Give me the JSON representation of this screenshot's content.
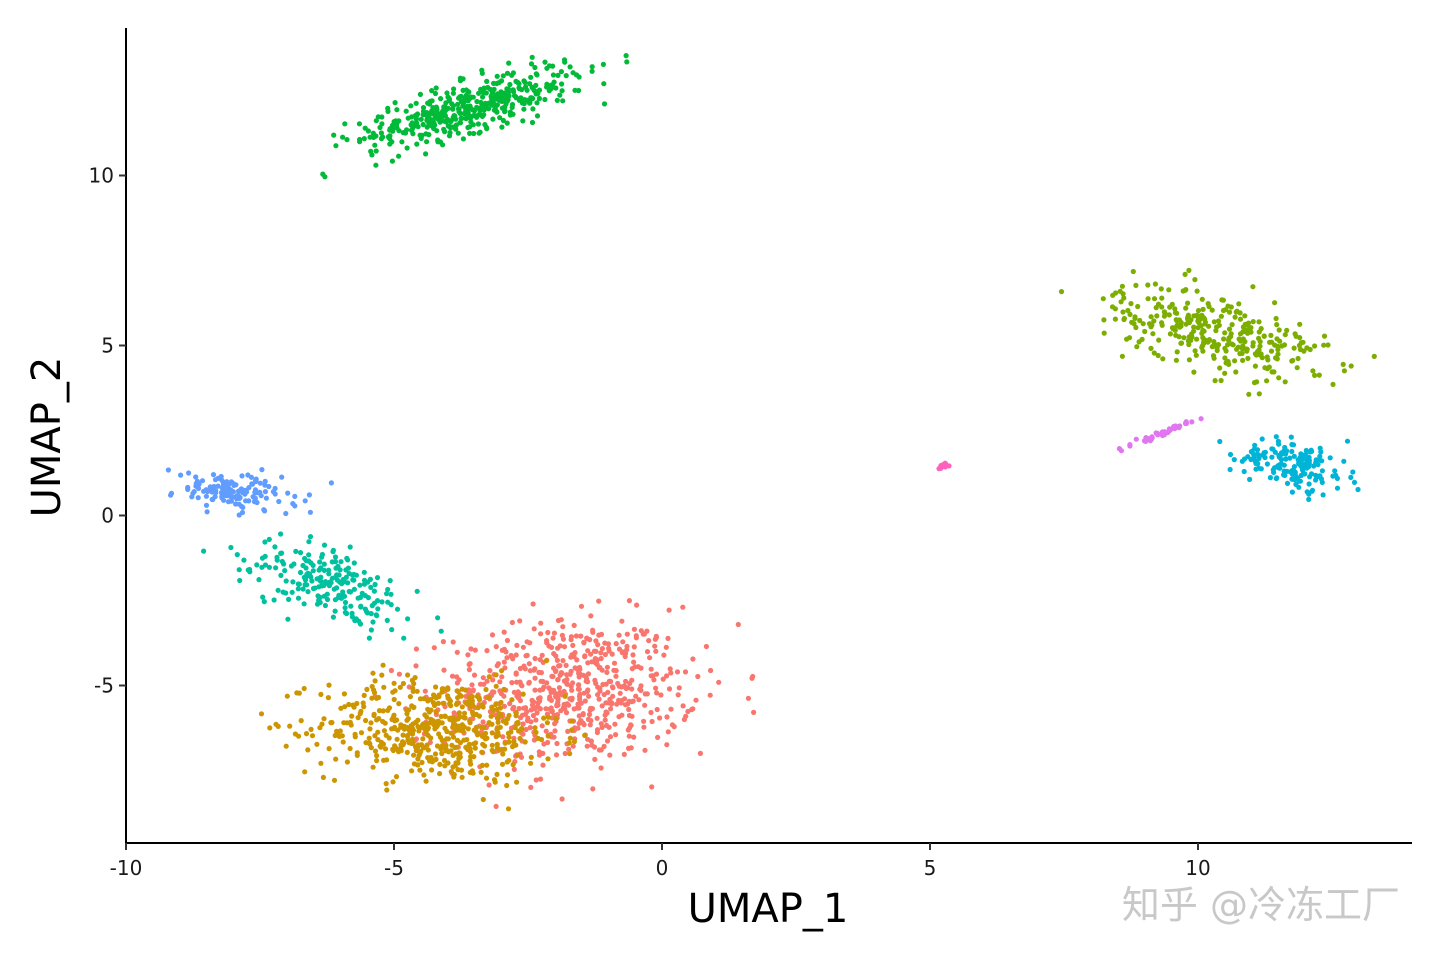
{
  "chart_data": {
    "type": "scatter",
    "title": "",
    "xlabel": "UMAP_1",
    "ylabel": "UMAP_2",
    "xlim": [
      -10.1,
      13.9
    ],
    "ylim": [
      -9.7,
      14.5
    ],
    "xticks": [
      -10,
      -5,
      0,
      5,
      10
    ],
    "xtick_labels": [
      "-10",
      "-5",
      "0",
      "5",
      "10"
    ],
    "yticks": [
      -5,
      0,
      5,
      10
    ],
    "ytick_labels": [
      "-5",
      "0",
      "5",
      "10"
    ],
    "grid": false,
    "legend": "none",
    "point_counts_by_cluster": [
      650,
      520,
      450,
      320,
      210,
      160,
      140,
      40,
      12
    ],
    "series": [
      {
        "color": "#F8766D",
        "center": [
          -1.8,
          -5.2
        ],
        "spread": [
          1.6,
          1.4
        ],
        "rotation_deg": 10
      },
      {
        "color": "#CD9600",
        "center": [
          -4.2,
          -6.3
        ],
        "spread": [
          1.5,
          1.0
        ],
        "rotation_deg": -5
      },
      {
        "color": "#00BA38",
        "center": [
          -3.6,
          12.0
        ],
        "spread": [
          1.5,
          0.45
        ],
        "rotation_deg": 25
      },
      {
        "color": "#7CAE00",
        "center": [
          10.3,
          5.4
        ],
        "spread": [
          1.4,
          0.7
        ],
        "rotation_deg": -25
      },
      {
        "color": "#00C19F",
        "center": [
          -6.2,
          -2.0
        ],
        "spread": [
          1.2,
          0.6
        ],
        "rotation_deg": -40
      },
      {
        "color": "#00B4D8",
        "center": [
          11.8,
          1.5
        ],
        "spread": [
          0.7,
          0.45
        ],
        "rotation_deg": -20
      },
      {
        "color": "#619CFF",
        "center": [
          -8.0,
          0.7
        ],
        "spread": [
          0.8,
          0.35
        ],
        "rotation_deg": -10
      },
      {
        "color": "#E076F0",
        "center": [
          9.3,
          2.4
        ],
        "spread": [
          0.4,
          0.05
        ],
        "rotation_deg": 30
      },
      {
        "color": "#FF62BC",
        "center": [
          5.25,
          1.45
        ],
        "spread": [
          0.08,
          0.06
        ],
        "rotation_deg": 0
      }
    ]
  },
  "watermark": "知乎 @冷冻工厂"
}
